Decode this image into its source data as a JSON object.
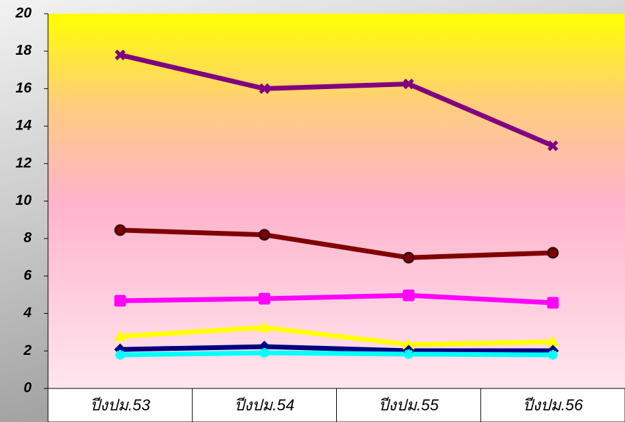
{
  "chart_data": {
    "type": "line",
    "categories": [
      "ปีงปม.53",
      "ปีงปม.54",
      "ปีงปม.55",
      "ปีงปม.56"
    ],
    "series": [
      {
        "color": "#800080",
        "marker": "x",
        "values": [
          17.8,
          16.0,
          16.25,
          12.95
        ]
      },
      {
        "color": "#800000",
        "marker": "circle",
        "values": [
          8.45,
          8.2,
          6.98,
          7.24
        ]
      },
      {
        "color": "#ff00ff",
        "marker": "square",
        "values": [
          4.68,
          4.79,
          4.97,
          4.57
        ]
      },
      {
        "color": "#ffff00",
        "marker": "triangle",
        "values": [
          2.78,
          3.25,
          2.34,
          2.49
        ]
      },
      {
        "color": "#000080",
        "marker": "diamond",
        "values": [
          2.08,
          2.23,
          2.01,
          2.01
        ]
      },
      {
        "color": "#00ffff",
        "marker": "star",
        "values": [
          1.79,
          1.9,
          1.83,
          1.79
        ]
      }
    ],
    "ylim": [
      0,
      20
    ],
    "yticks": [
      0,
      2,
      4,
      6,
      8,
      10,
      12,
      14,
      16,
      18,
      20
    ]
  }
}
